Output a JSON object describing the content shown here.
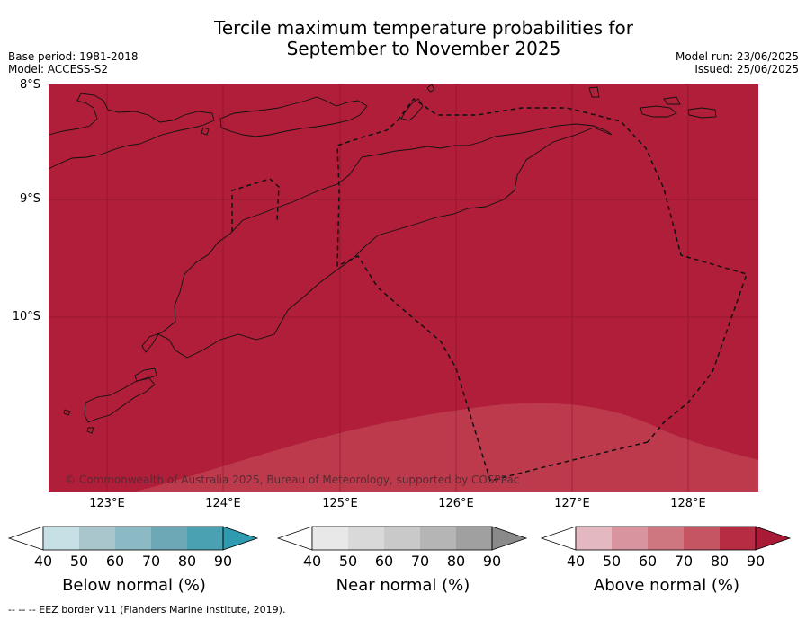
{
  "title_line1": "Tercile maximum temperature probabilities for",
  "title_line2": "September to November 2025",
  "base_period": "Base period: 1981-2018",
  "model": "Model: ACCESS-S2",
  "model_run": "Model run: 23/06/2025",
  "issued": "Issued: 25/06/2025",
  "lat_labels": [
    "8°S",
    "9°S",
    "10°S"
  ],
  "lon_labels": [
    "123°E",
    "124°E",
    "125°E",
    "126°E",
    "127°E",
    "128°E"
  ],
  "copyright": "© Commonwealth of Australia 2025, Bureau of Meteorology, supported by COSPPac",
  "footnote": "--  --  -- EEZ border V11 (Flanders Marine Institute, 2019).",
  "colorbars": {
    "ticks": [
      "40",
      "50",
      "60",
      "70",
      "80",
      "90"
    ],
    "below": {
      "label": "Below normal (%)",
      "colors": [
        "#ffffff",
        "#c6e0e6",
        "#a9c6cc",
        "#8bb9c4",
        "#6ca8b5",
        "#4aa1b2",
        "#2f9bb0"
      ]
    },
    "near": {
      "label": "Near normal (%)",
      "colors": [
        "#ffffff",
        "#e8e8e8",
        "#d9d9d9",
        "#c9c9c9",
        "#b5b5b5",
        "#a0a0a0",
        "#8a8a8a"
      ]
    },
    "above": {
      "label": "Above normal (%)",
      "colors": [
        "#ffffff",
        "#e3b8c0",
        "#d8949f",
        "#cf7780",
        "#c65564",
        "#b62d43",
        "#a81a36"
      ]
    }
  },
  "map_colors": {
    "main": "#b01e39",
    "lighter_zone": "#bc3a4c"
  }
}
